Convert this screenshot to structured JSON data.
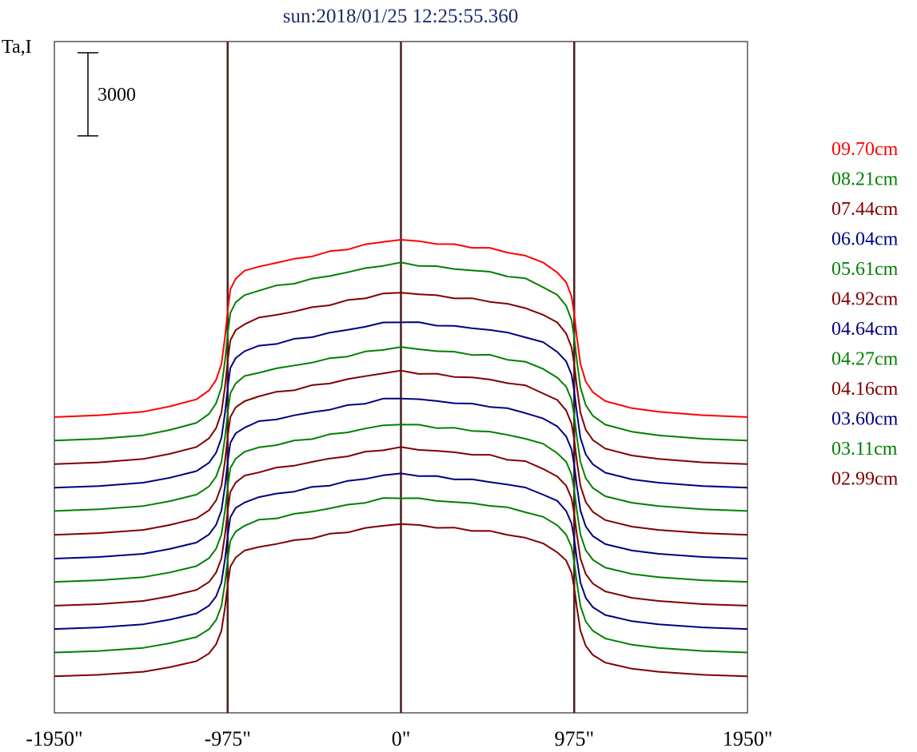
{
  "chart_data": {
    "type": "line",
    "title": "sun:2018/01/25 12:25:55.360",
    "ylabel": "Ta,I",
    "xlabel": "",
    "scale_bar_label": "3000",
    "scale_bar_value": 3000,
    "xlim": [
      -1950,
      1950
    ],
    "x_ticks": [
      {
        "value": -1950,
        "label": "-1950\""
      },
      {
        "value": -975,
        "label": "-975\""
      },
      {
        "value": 0,
        "label": "0\""
      },
      {
        "value": 975,
        "label": "975\""
      },
      {
        "value": 1950,
        "label": "1950\""
      }
    ],
    "vertical_markers": [
      -975,
      0,
      975
    ],
    "limb_x": 975,
    "x": [
      -1950,
      -1700,
      -1450,
      -1300,
      -1150,
      -1080,
      -1040,
      -1010,
      -990,
      -975,
      -960,
      -930,
      -880,
      -800,
      -700,
      -600,
      -500,
      -400,
      -300,
      -200,
      -100,
      0,
      100,
      200,
      300,
      400,
      500,
      600,
      700,
      800,
      880,
      930,
      960,
      975,
      990,
      1010,
      1040,
      1080,
      1150,
      1300,
      1450,
      1700,
      1950
    ],
    "profile_shape": [
      0,
      0.01,
      0.03,
      0.06,
      0.1,
      0.15,
      0.21,
      0.3,
      0.45,
      0.6,
      0.72,
      0.78,
      0.82,
      0.85,
      0.87,
      0.89,
      0.91,
      0.93,
      0.95,
      0.97,
      0.99,
      1.0,
      0.99,
      0.98,
      0.97,
      0.96,
      0.95,
      0.93,
      0.91,
      0.87,
      0.82,
      0.76,
      0.68,
      0.58,
      0.45,
      0.3,
      0.2,
      0.14,
      0.09,
      0.05,
      0.03,
      0.01,
      0
    ],
    "series": [
      {
        "name": "09.70cm",
        "color": "#ff0000",
        "offset": 9610,
        "amplitude": 6400
      },
      {
        "name": "08.21cm",
        "color": "#008000",
        "offset": 8760,
        "amplitude": 6400
      },
      {
        "name": "07.44cm",
        "color": "#800000",
        "offset": 7910,
        "amplitude": 6200
      },
      {
        "name": "06.04cm",
        "color": "#000080",
        "offset": 7060,
        "amplitude": 6000
      },
      {
        "name": "05.61cm",
        "color": "#008000",
        "offset": 6220,
        "amplitude": 5900
      },
      {
        "name": "04.92cm",
        "color": "#800000",
        "offset": 5360,
        "amplitude": 5900
      },
      {
        "name": "04.64cm",
        "color": "#000080",
        "offset": 4500,
        "amplitude": 5800
      },
      {
        "name": "04.27cm",
        "color": "#008000",
        "offset": 3660,
        "amplitude": 5700
      },
      {
        "name": "04.16cm",
        "color": "#800000",
        "offset": 2800,
        "amplitude": 5700
      },
      {
        "name": "03.60cm",
        "color": "#000080",
        "offset": 1960,
        "amplitude": 5600
      },
      {
        "name": "03.11cm",
        "color": "#008000",
        "offset": 1110,
        "amplitude": 5600
      },
      {
        "name": "02.99cm",
        "color": "#800000",
        "offset": 250,
        "amplitude": 5500
      }
    ],
    "legend_position": "right",
    "grid": false
  }
}
